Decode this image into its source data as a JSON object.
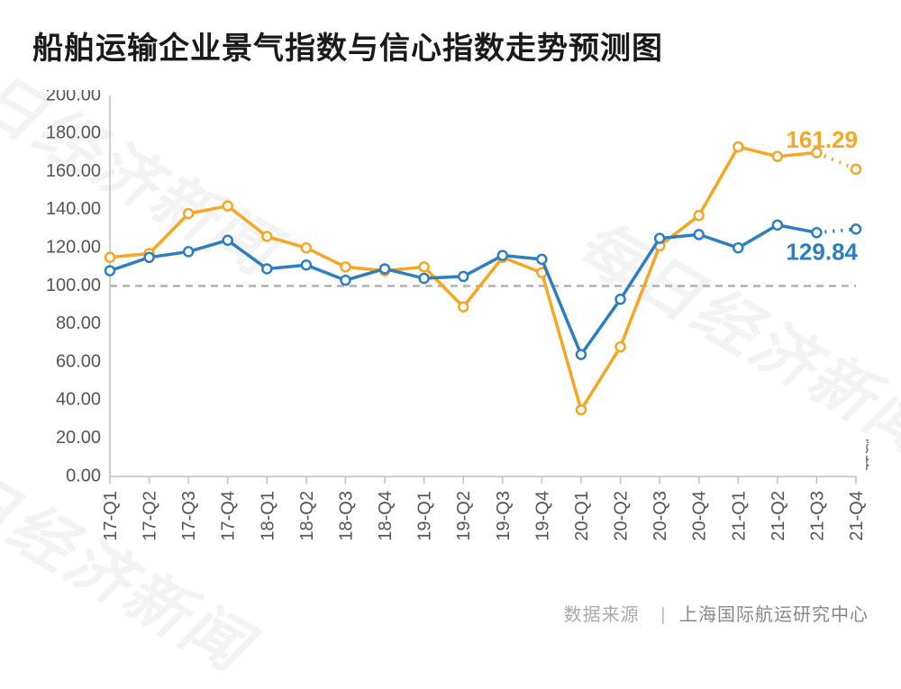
{
  "title": "船舶运输企业景气指数与信心指数走势预测图",
  "title_fontsize": 34,
  "source_label": "数据来源",
  "source_value": "上海国际航运研究中心",
  "watermark_text": "每日经济新闻",
  "forecast_label_text": "预测",
  "chart": {
    "type": "line",
    "background_color": "#ffffff",
    "axis_color": "#bfbfbf",
    "tick_text_color": "#555555",
    "ylim": [
      0,
      200
    ],
    "ytick_step": 20,
    "yticks": [
      "0.00",
      "20.00",
      "40.00",
      "60.00",
      "80.00",
      "100.00",
      "120.00",
      "140.00",
      "160.00",
      "180.00",
      "200.00"
    ],
    "reference_line": {
      "value": 100,
      "color": "#b0b0b0"
    },
    "categories": [
      "17-Q1",
      "17-Q2",
      "17-Q3",
      "17-Q4",
      "18-Q1",
      "18-Q2",
      "18-Q3",
      "18-Q4",
      "19-Q1",
      "19-Q2",
      "19-Q3",
      "19-Q4",
      "20-Q1",
      "20-Q2",
      "20-Q3",
      "20-Q4",
      "21-Q1",
      "21-Q2",
      "21-Q3",
      "21-Q4"
    ],
    "forecast_from_index": 18,
    "marker": {
      "style": "circle",
      "radius": 5,
      "fill": "#ffffff",
      "stroke_width": 2.5
    },
    "line_width": 3.5,
    "series": [
      {
        "name": "confidence-index",
        "color": "#f5a623",
        "values": [
          115,
          117,
          138,
          142,
          126,
          120,
          110,
          108,
          110,
          89,
          115,
          107,
          35,
          68,
          121,
          137,
          173,
          168,
          170,
          161.29
        ],
        "end_label": "161.29",
        "end_label_color": "#f5a623"
      },
      {
        "name": "prosperity-index",
        "color": "#2d7fc1",
        "values": [
          108,
          115,
          118,
          124,
          109,
          111,
          103,
          109,
          104,
          105,
          116,
          114,
          64,
          93,
          125,
          127,
          120,
          132,
          128,
          129.84
        ],
        "end_label": "129.84",
        "end_label_color": "#2d7fc1"
      }
    ]
  }
}
